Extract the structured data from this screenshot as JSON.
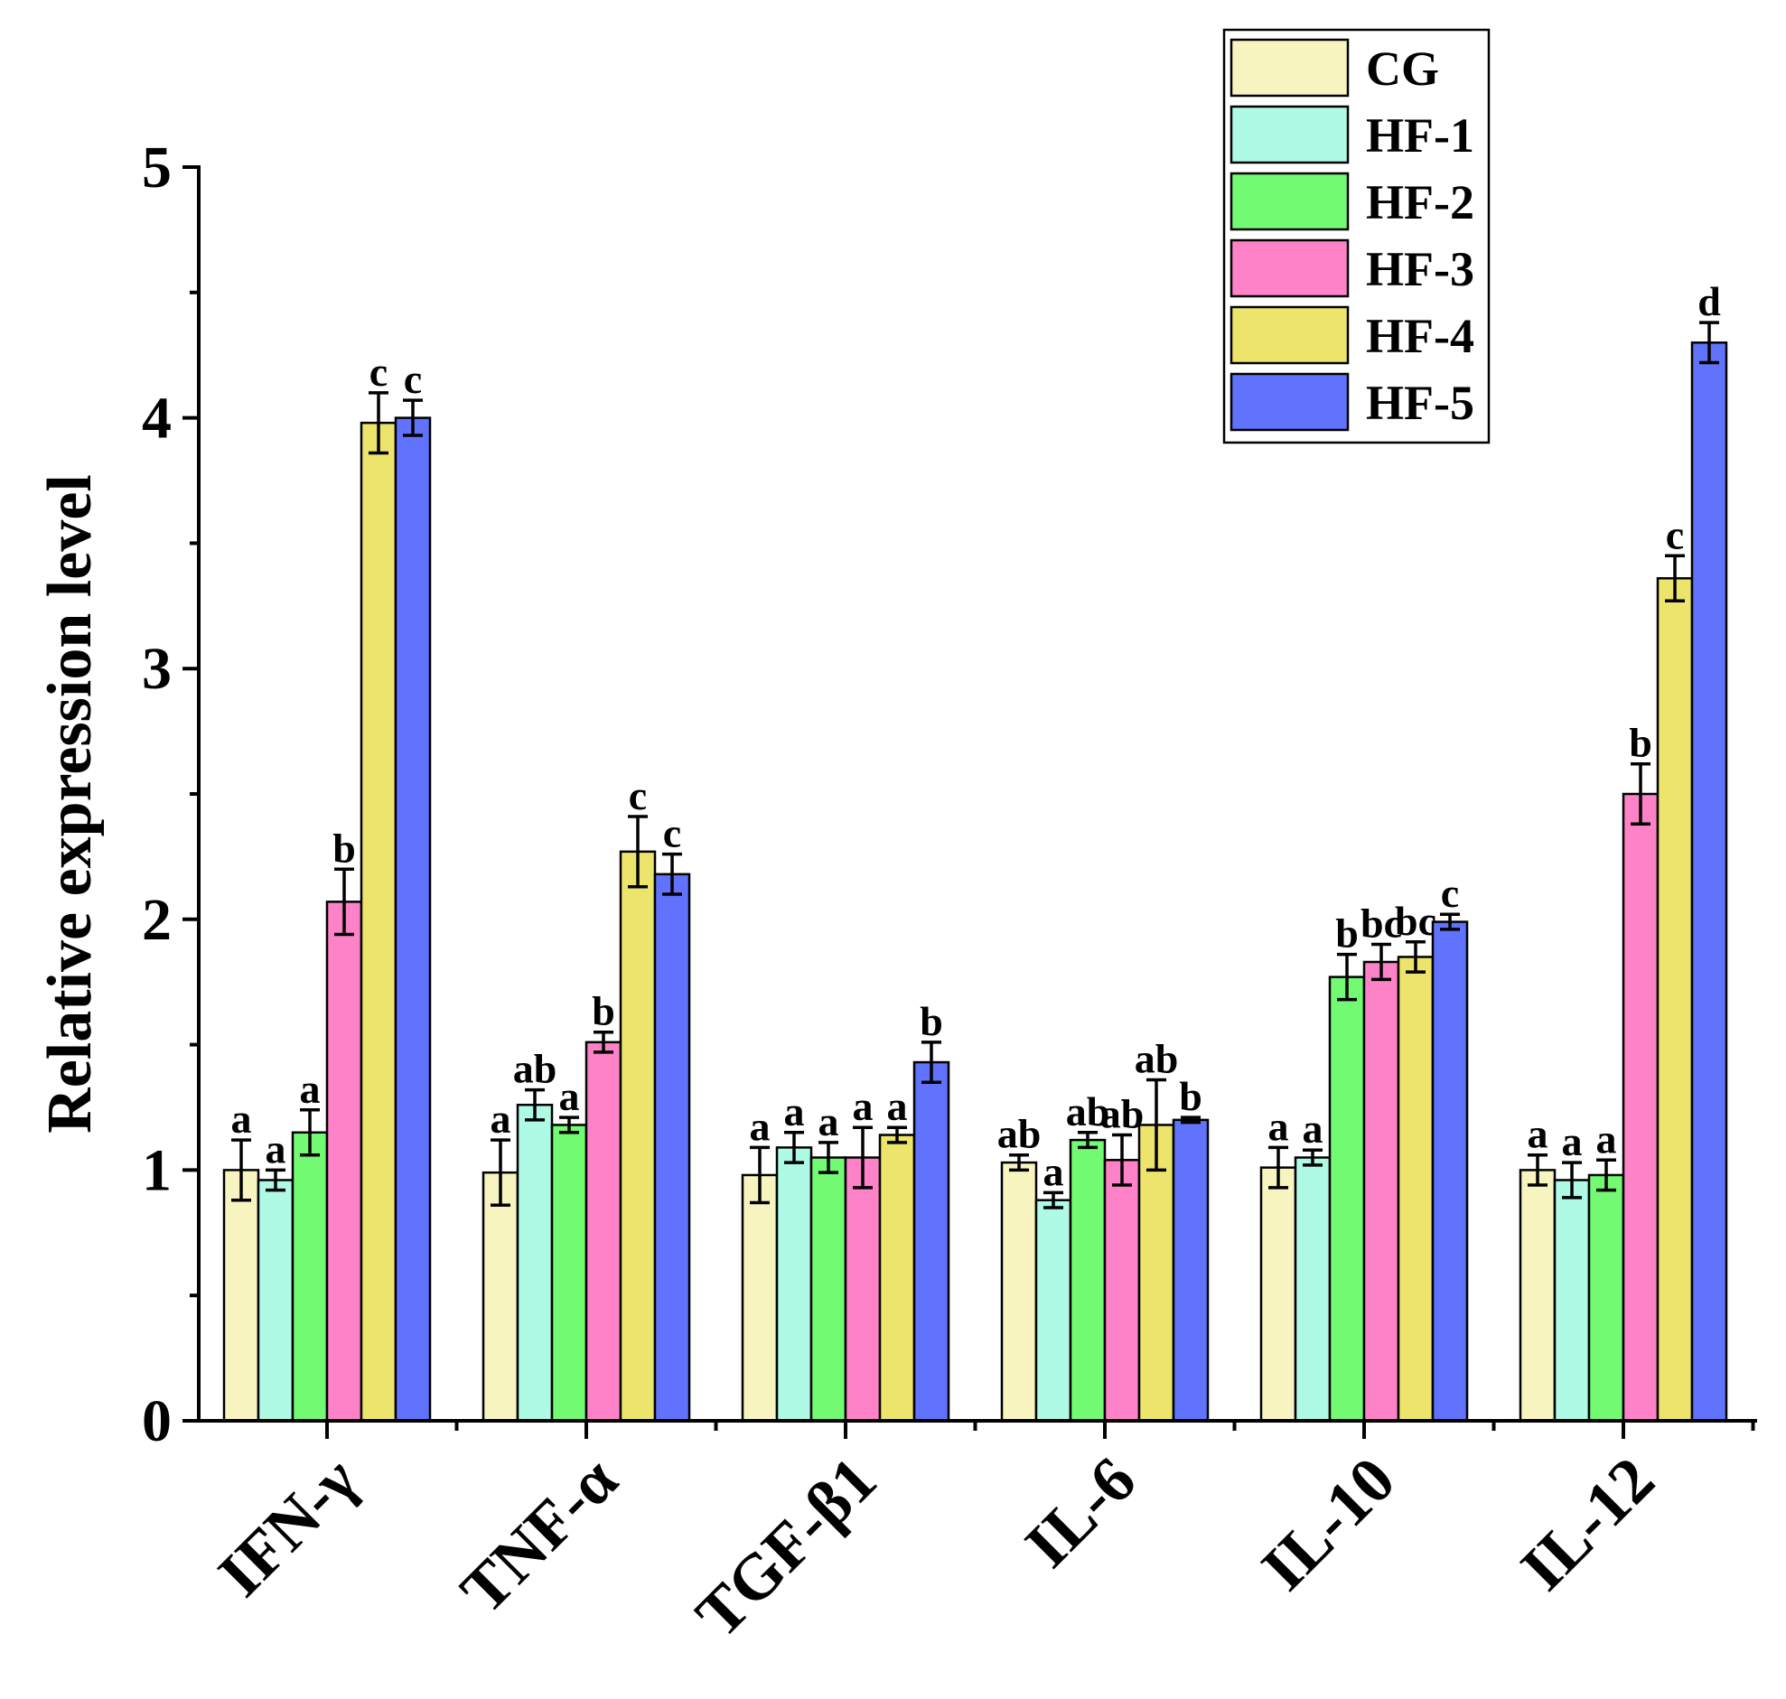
{
  "chart_data": {
    "type": "bar",
    "title": "",
    "xlabel": "",
    "ylabel": "Relative expression level",
    "ylim": [
      0,
      5
    ],
    "yticks": [
      "0",
      "1",
      "2",
      "3",
      "4",
      "5"
    ],
    "categories": [
      "IFN-γ",
      "TNF-α",
      "TGF-β1",
      "IL-6",
      "IL-10",
      "IL-12"
    ],
    "series": [
      {
        "name": "CG",
        "color": "#F8F4C0",
        "values": [
          1.0,
          0.99,
          0.98,
          1.03,
          1.01,
          1.0
        ],
        "errors": [
          0.12,
          0.13,
          0.11,
          0.03,
          0.08,
          0.06
        ],
        "labels": [
          "a",
          "a",
          "a",
          "ab",
          "a",
          "a"
        ]
      },
      {
        "name": "HF-1",
        "color": "#AFFAE4",
        "values": [
          0.96,
          1.26,
          1.09,
          0.88,
          1.05,
          0.96
        ],
        "errors": [
          0.04,
          0.06,
          0.06,
          0.03,
          0.03,
          0.07
        ],
        "labels": [
          "a",
          "ab",
          "a",
          "a",
          "a",
          "a"
        ]
      },
      {
        "name": "HF-2",
        "color": "#72FA72",
        "values": [
          1.15,
          1.18,
          1.05,
          1.12,
          1.77,
          0.98
        ],
        "errors": [
          0.09,
          0.03,
          0.06,
          0.03,
          0.09,
          0.06
        ],
        "labels": [
          "a",
          "a",
          "a",
          "ab",
          "b",
          "a"
        ]
      },
      {
        "name": "HF-3",
        "color": "#FD82C7",
        "values": [
          2.07,
          1.51,
          1.05,
          1.04,
          1.83,
          2.5
        ],
        "errors": [
          0.13,
          0.04,
          0.12,
          0.1,
          0.07,
          0.12
        ],
        "labels": [
          "b",
          "b",
          "a",
          "ab",
          "bc",
          "b"
        ]
      },
      {
        "name": "HF-4",
        "color": "#EDE46B",
        "values": [
          3.98,
          2.27,
          1.14,
          1.18,
          1.85,
          3.36
        ],
        "errors": [
          0.12,
          0.14,
          0.03,
          0.18,
          0.06,
          0.09
        ],
        "labels": [
          "c",
          "c",
          "a",
          "ab",
          "bc",
          "c"
        ]
      },
      {
        "name": "HF-5",
        "color": "#6173FC",
        "values": [
          4.0,
          2.18,
          1.43,
          1.2,
          1.99,
          4.3
        ],
        "errors": [
          0.07,
          0.08,
          0.08,
          0.01,
          0.03,
          0.08
        ],
        "labels": [
          "c",
          "c",
          "b",
          "b",
          "c",
          "d"
        ]
      }
    ],
    "legend": {
      "position": "top-right"
    },
    "grid": false
  }
}
